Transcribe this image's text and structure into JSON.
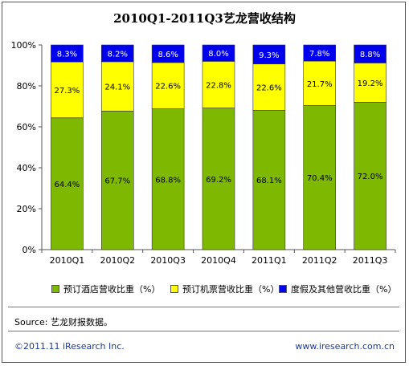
{
  "title": "2010Q1-2011Q3艺龙营收结构",
  "chart_data": {
    "type": "bar",
    "stacked": true,
    "categories": [
      "2010Q1",
      "2010Q2",
      "2010Q3",
      "2010Q4",
      "2011Q1",
      "2011Q2",
      "2011Q3"
    ],
    "series": [
      {
        "name": "预订酒店营收比重（%）",
        "values": [
          64.4,
          67.7,
          68.8,
          69.2,
          68.1,
          70.4,
          72.0
        ],
        "labels": [
          "64.4%",
          "67.7%",
          "68.8%",
          "69.2%",
          "68.1%",
          "70.4%",
          "72.0%"
        ],
        "color": "#7fb800",
        "label_color": "#000000"
      },
      {
        "name": "预订机票营收比重（%）",
        "values": [
          27.3,
          24.1,
          22.6,
          22.8,
          22.6,
          21.7,
          19.2
        ],
        "labels": [
          "27.3%",
          "24.1%",
          "22.6%",
          "22.8%",
          "22.6%",
          "21.7%",
          "19.2%"
        ],
        "color": "#ffff00",
        "label_color": "#000000"
      },
      {
        "name": "度假及其他营收比重（%）",
        "values": [
          8.3,
          8.2,
          8.6,
          8.0,
          9.3,
          7.8,
          8.8
        ],
        "labels": [
          "8.3%",
          "8.2%",
          "8.6%",
          "8.0%",
          "9.3%",
          "7.8%",
          "8.8%"
        ],
        "color": "#0000ee",
        "label_color": "#ffffff"
      }
    ],
    "yticks": [
      "0%",
      "20%",
      "40%",
      "60%",
      "80%",
      "100%"
    ],
    "ylim": [
      0,
      100
    ],
    "grid": false,
    "legend_position": "bottom"
  },
  "source": "Source: 艺龙财报数据。",
  "footer": {
    "copyright": "©2011.11 iResearch Inc.",
    "website": "www.iresearch.com.cn"
  }
}
